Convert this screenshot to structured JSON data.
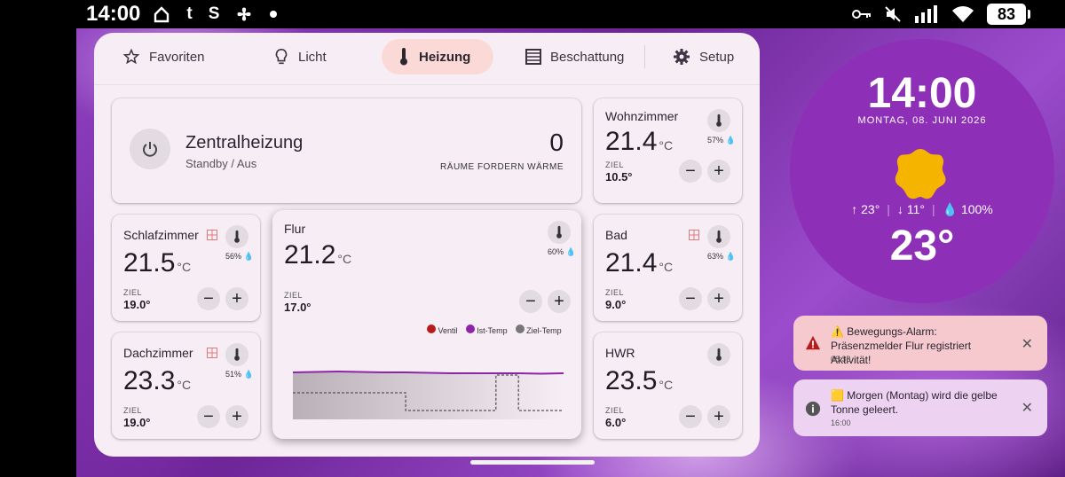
{
  "statusbar": {
    "time": "14:00",
    "left_icons": [
      "home-icon",
      "t-icon",
      "s-icon",
      "pinwheel-icon",
      "dot-icon"
    ],
    "right_icons": [
      "key-icon",
      "mute-icon",
      "signal-icon",
      "wifi-icon"
    ],
    "battery": "83"
  },
  "tabs": [
    {
      "label": "Favoriten",
      "icon": "star-icon",
      "active": false
    },
    {
      "label": "Licht",
      "icon": "bulb-icon",
      "active": false
    },
    {
      "label": "Heizung",
      "icon": "thermometer-icon",
      "active": true
    },
    {
      "label": "Beschattung",
      "icon": "blinds-icon",
      "active": false
    },
    {
      "label": "Setup",
      "icon": "gear-icon",
      "active": false
    }
  ],
  "central": {
    "title": "Zentralheizung",
    "status": "Standby / Aus",
    "count": "0",
    "count_label": "RÄUME FORDERN WÄRME"
  },
  "rooms": {
    "wohnzimmer": {
      "name": "Wohnzimmer",
      "temp": "21.4",
      "unit": "°C",
      "humidity": "57%",
      "ziel_label": "ZIEL",
      "ziel": "10.5°"
    },
    "schlafzimmer": {
      "name": "Schlafzimmer",
      "temp": "21.5",
      "unit": "°C",
      "humidity": "56%",
      "ziel_label": "ZIEL",
      "ziel": "19.0°"
    },
    "flur": {
      "name": "Flur",
      "temp": "21.2",
      "unit": "°C",
      "humidity": "60%",
      "ziel_label": "ZIEL",
      "ziel": "17.0°"
    },
    "bad": {
      "name": "Bad",
      "temp": "21.4",
      "unit": "°C",
      "humidity": "63%",
      "ziel_label": "ZIEL",
      "ziel": "9.0°"
    },
    "dachzimmer": {
      "name": "Dachzimmer",
      "temp": "23.3",
      "unit": "°C",
      "humidity": "51%",
      "ziel_label": "ZIEL",
      "ziel": "19.0°"
    },
    "hwr": {
      "name": "HWR",
      "temp": "23.5",
      "unit": "°C",
      "ziel_label": "ZIEL",
      "ziel": "6.0°"
    }
  },
  "chart_data": {
    "type": "line",
    "legend": [
      {
        "name": "Ventil",
        "color": "#b71c1c"
      },
      {
        "name": "Ist-Temp",
        "color": "#8e24aa"
      },
      {
        "name": "Ziel-Temp",
        "color": "#777777"
      }
    ],
    "series": [
      {
        "name": "Ist-Temp",
        "values": [
          21.3,
          21.35,
          21.4,
          21.35,
          21.3,
          21.3,
          21.25,
          21.2,
          21.2,
          21.2,
          21.2,
          21.15,
          21.2
        ]
      },
      {
        "name": "Ziel-Temp",
        "values": [
          19,
          19,
          19,
          19,
          19,
          17,
          17,
          17,
          17,
          21,
          17,
          17,
          17
        ]
      }
    ]
  },
  "clock": {
    "time": "14:00",
    "date": "MONTAG, 08. JUNI 2026",
    "high": "23°",
    "low": "11°",
    "rain": "100%",
    "temp": "23°"
  },
  "notifications": [
    {
      "text": "⚠️ Bewegungs-Alarm: Präsenzmelder Flur registriert Aktivität!",
      "time": "08:38",
      "icon": "warning-icon",
      "bg": "#f6c9cf"
    },
    {
      "text": "🟨 Morgen (Montag) wird die gelbe Tonne geleert.",
      "time": "16:00",
      "icon": "info-icon",
      "bg": "#eed2f2"
    }
  ]
}
